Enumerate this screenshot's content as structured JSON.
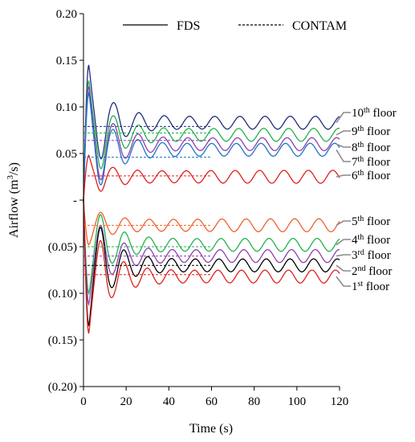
{
  "chart_data": {
    "type": "line",
    "xlabel": "Time (s)",
    "ylabel": "Airflow (m³/s)",
    "ylabel_parts": {
      "before": "Airflow (m",
      "sup": "3",
      "after": "/s)"
    },
    "xlim": [
      0,
      120
    ],
    "ylim": [
      -0.2,
      0.2
    ],
    "x_ticks": [
      0,
      20,
      40,
      60,
      80,
      100,
      120
    ],
    "y_ticks": [
      0.2,
      0.15,
      0.1,
      0.05,
      0,
      -0.05,
      -0.1,
      -0.15,
      -0.2
    ],
    "y_tick_labels": [
      "0.20",
      "0.15",
      "0.10",
      "0.05",
      "-",
      "(0.05)",
      "(0.10)",
      "(0.15)",
      "(0.20)"
    ],
    "grid": false,
    "legend": {
      "placement": "top",
      "entries": [
        {
          "label": "FDS",
          "style": "solid"
        },
        {
          "label": "CONTAM",
          "style": "dashed"
        }
      ]
    },
    "contam_end_time": 60,
    "series": [
      {
        "name": "10th floor",
        "floor": "10",
        "suffix": "th",
        "color": "#1f2f7a",
        "steady_fds": 0.083,
        "contam": 0.079,
        "initial_peak": 0.145,
        "first_min": 0.025
      },
      {
        "name": "9th floor",
        "floor": "9",
        "suffix": "th",
        "color": "#22b24c",
        "steady_fds": 0.07,
        "contam": 0.072,
        "initial_peak": 0.128,
        "first_min": 0.02
      },
      {
        "name": "8th floor",
        "floor": "8",
        "suffix": "th",
        "color": "#8e3fb0",
        "steady_fds": 0.06,
        "contam": 0.064,
        "initial_peak": 0.122,
        "first_min": 0.018
      },
      {
        "name": "7th floor",
        "floor": "7",
        "suffix": "th",
        "color": "#1f73c8",
        "steady_fds": 0.054,
        "contam": 0.046,
        "initial_peak": 0.115,
        "first_min": 0.015
      },
      {
        "name": "6th floor",
        "floor": "6",
        "suffix": "th",
        "color": "#e0201c",
        "steady_fds": 0.025,
        "contam": 0.026,
        "initial_peak": 0.048,
        "first_min": 0.004
      },
      {
        "name": "5th floor",
        "floor": "5",
        "suffix": "th",
        "color": "#f0612b",
        "steady_fds": -0.027,
        "contam": -0.027,
        "initial_peak": -0.048,
        "first_min": -0.02
      },
      {
        "name": "4th floor",
        "floor": "4",
        "suffix": "th",
        "color": "#22b24c",
        "steady_fds": -0.048,
        "contam": -0.05,
        "initial_peak": -0.1,
        "first_min": -0.022
      },
      {
        "name": "3rd floor",
        "floor": "3",
        "suffix": "rd",
        "color": "#8e3fb0",
        "steady_fds": -0.06,
        "contam": -0.06,
        "initial_peak": -0.112,
        "first_min": -0.02
      },
      {
        "name": "2nd floor",
        "floor": "2",
        "suffix": "nd",
        "color": "#000000",
        "steady_fds": -0.07,
        "contam": -0.07,
        "initial_peak": -0.135,
        "first_min": -0.018
      },
      {
        "name": "1st floor",
        "floor": "1",
        "suffix": "st",
        "color": "#e0201c",
        "steady_fds": -0.082,
        "contam": -0.08,
        "initial_peak": -0.143,
        "first_min": -0.022
      }
    ]
  }
}
